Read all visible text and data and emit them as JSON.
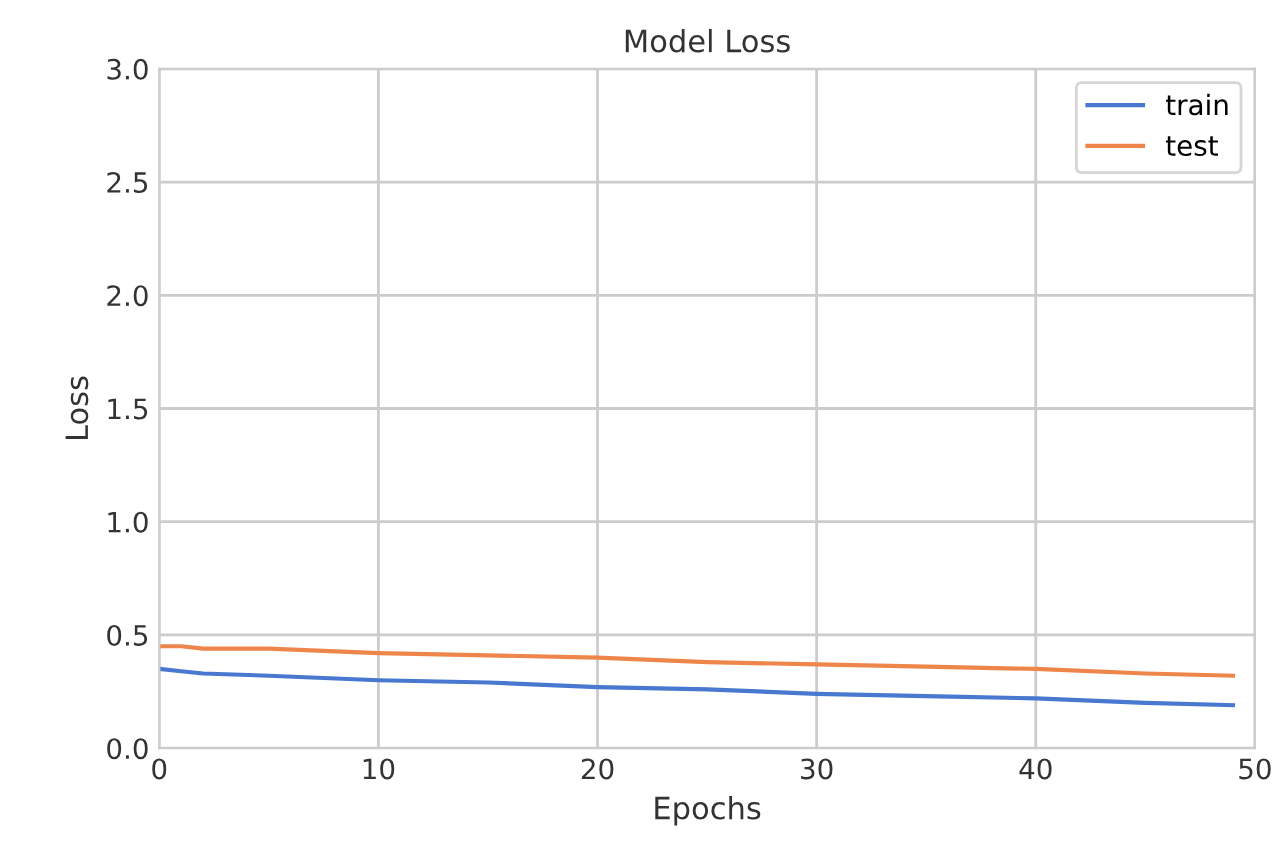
{
  "chart_data": {
    "type": "line",
    "title": "Model Loss",
    "xlabel": "Epochs",
    "ylabel": "Loss",
    "x": [
      0,
      1,
      2,
      5,
      10,
      15,
      20,
      25,
      30,
      35,
      40,
      45,
      49
    ],
    "series": [
      {
        "name": "train",
        "color": "#4878d0",
        "values": [
          0.35,
          0.34,
          0.33,
          0.32,
          0.3,
          0.29,
          0.27,
          0.26,
          0.24,
          0.23,
          0.22,
          0.2,
          0.19
        ]
      },
      {
        "name": "test",
        "color": "#ee854a",
        "values": [
          0.45,
          0.45,
          0.44,
          0.44,
          0.42,
          0.41,
          0.4,
          0.38,
          0.37,
          0.36,
          0.35,
          0.33,
          0.32
        ]
      }
    ],
    "xlim": [
      0,
      50
    ],
    "ylim": [
      0,
      3
    ],
    "xticks": [
      0,
      10,
      20,
      30,
      40,
      50
    ],
    "yticks": [
      {
        "value": 0,
        "label": "0.0"
      },
      0.5,
      {
        "value": 1,
        "label": "1.0"
      },
      1.5,
      {
        "value": 2,
        "label": "2.0"
      },
      2.5,
      {
        "value": 3,
        "label": "3.0"
      }
    ],
    "grid": true,
    "legend": "top right",
    "marker": "none",
    "line_style": "solid"
  }
}
